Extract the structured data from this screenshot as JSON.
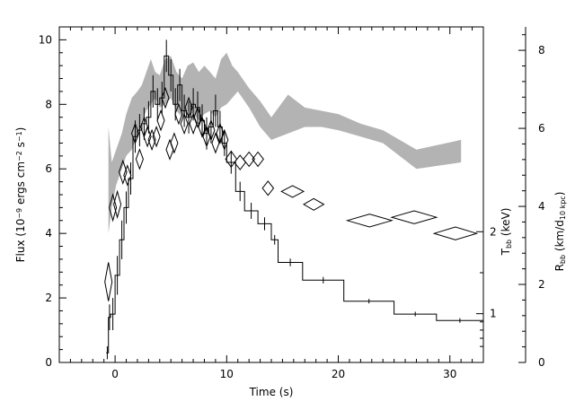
{
  "chart_data": {
    "type": "line",
    "xlabel": "Time (s)",
    "ylabel_left": [
      "Flux (10",
      "−9",
      " ergs cm",
      "−2",
      " s",
      "−1",
      ")"
    ],
    "ylabel_right_inner": [
      "T",
      "bb",
      " (keV)"
    ],
    "ylabel_right_outer": [
      "R",
      "bb",
      " (km/d",
      "10 kpc",
      ")"
    ],
    "xlim": [
      -5,
      33
    ],
    "ylim_flux": [
      0,
      10.4
    ],
    "ylim_rbb": [
      0,
      8.6
    ],
    "x_ticks": [
      "0",
      "10",
      "20",
      "30"
    ],
    "flux_ticks": [
      "0",
      "2",
      "4",
      "6",
      "8",
      "10"
    ],
    "kT_ticks": [
      "1",
      "2"
    ],
    "rbb_ticks": [
      "0",
      "2",
      "4",
      "6",
      "8"
    ],
    "kT_tick_values": [
      1,
      2
    ],
    "grey_band_color": "#b3b3b3",
    "series": [
      {
        "name": "",
        "style": "histogram",
        "points": [
          {
            "x0": -0.8,
            "x1": -0.6,
            "y": 0.3,
            "err": 0.2
          },
          {
            "x0": -0.6,
            "x1": -0.4,
            "y": 1.4,
            "err": 0.4
          },
          {
            "x0": -0.4,
            "x1": 0.0,
            "y": 1.5,
            "err": 0.5
          },
          {
            "x0": 0.0,
            "x1": 0.4,
            "y": 2.7,
            "err": 0.6
          },
          {
            "x0": 0.4,
            "x1": 0.8,
            "y": 3.8,
            "err": 0.6
          },
          {
            "x0": 0.8,
            "x1": 1.2,
            "y": 4.8,
            "err": 0.5
          },
          {
            "x0": 1.2,
            "x1": 1.6,
            "y": 5.7,
            "err": 0.5
          },
          {
            "x0": 1.6,
            "x1": 2.0,
            "y": 7.0,
            "err": 0.5
          },
          {
            "x0": 2.0,
            "x1": 2.4,
            "y": 7.2,
            "err": 0.5
          },
          {
            "x0": 2.4,
            "x1": 2.8,
            "y": 7.4,
            "err": 0.5
          },
          {
            "x0": 2.8,
            "x1": 3.2,
            "y": 7.6,
            "err": 0.5
          },
          {
            "x0": 3.2,
            "x1": 3.6,
            "y": 8.4,
            "err": 0.5
          },
          {
            "x0": 3.6,
            "x1": 4.0,
            "y": 8.0,
            "err": 0.5
          },
          {
            "x0": 4.0,
            "x1": 4.4,
            "y": 8.2,
            "err": 0.5
          },
          {
            "x0": 4.4,
            "x1": 4.8,
            "y": 9.5,
            "err": 0.5
          },
          {
            "x0": 4.8,
            "x1": 5.2,
            "y": 8.9,
            "err": 0.5
          },
          {
            "x0": 5.2,
            "x1": 5.6,
            "y": 8.0,
            "err": 0.5
          },
          {
            "x0": 5.6,
            "x1": 6.0,
            "y": 8.6,
            "err": 0.5
          },
          {
            "x0": 6.0,
            "x1": 6.4,
            "y": 7.8,
            "err": 0.5
          },
          {
            "x0": 6.4,
            "x1": 6.8,
            "y": 7.6,
            "err": 0.5
          },
          {
            "x0": 6.8,
            "x1": 7.2,
            "y": 8.0,
            "err": 0.5
          },
          {
            "x0": 7.2,
            "x1": 7.6,
            "y": 7.9,
            "err": 0.5
          },
          {
            "x0": 7.6,
            "x1": 8.0,
            "y": 7.5,
            "err": 0.5
          },
          {
            "x0": 8.0,
            "x1": 8.4,
            "y": 7.1,
            "err": 0.5
          },
          {
            "x0": 8.4,
            "x1": 8.8,
            "y": 7.3,
            "err": 0.5
          },
          {
            "x0": 8.8,
            "x1": 9.2,
            "y": 7.8,
            "err": 0.5
          },
          {
            "x0": 9.2,
            "x1": 9.6,
            "y": 7.3,
            "err": 0.5
          },
          {
            "x0": 9.6,
            "x1": 10.0,
            "y": 6.8,
            "err": 0.4
          },
          {
            "x0": 10.0,
            "x1": 10.8,
            "y": 6.2,
            "err": 0.35
          },
          {
            "x0": 10.8,
            "x1": 11.6,
            "y": 5.3,
            "err": 0.3
          },
          {
            "x0": 11.6,
            "x1": 12.8,
            "y": 4.7,
            "err": 0.25
          },
          {
            "x0": 12.8,
            "x1": 14.0,
            "y": 4.3,
            "err": 0.2
          },
          {
            "x0": 14.0,
            "x1": 14.6,
            "y": 3.8,
            "err": 0.15
          },
          {
            "x0": 14.6,
            "x1": 16.8,
            "y": 3.1,
            "err": 0.12
          },
          {
            "x0": 16.8,
            "x1": 20.5,
            "y": 2.55,
            "err": 0.1
          },
          {
            "x0": 20.5,
            "x1": 25.0,
            "y": 1.9,
            "err": 0.07
          },
          {
            "x0": 25.0,
            "x1": 28.8,
            "y": 1.5,
            "err": 0.07
          },
          {
            "x0": 28.8,
            "x1": 33.0,
            "y": 1.3,
            "err": 0.07
          }
        ]
      },
      {
        "name": "",
        "style": "band",
        "x": [
          -0.6,
          -0.3,
          0.1,
          0.6,
          1.0,
          1.5,
          2.0,
          2.4,
          2.8,
          3.2,
          3.6,
          4.0,
          4.5,
          5.0,
          5.5,
          6.0,
          6.5,
          7.0,
          7.5,
          8.0,
          8.5,
          9.0,
          9.5,
          10.0,
          10.5,
          11.0,
          12.0,
          13.0,
          14.0,
          15.5,
          17.0,
          18.5,
          20.0,
          22.0,
          24.0,
          27.0,
          31.0
        ],
        "low": [
          4.0,
          4.8,
          5.5,
          6.0,
          6.4,
          6.6,
          7.0,
          7.5,
          7.8,
          8.0,
          8.2,
          7.9,
          8.0,
          8.2,
          7.8,
          7.6,
          7.8,
          7.7,
          7.5,
          7.7,
          7.8,
          7.6,
          7.9,
          8.0,
          8.2,
          8.4,
          7.9,
          7.3,
          6.9,
          7.1,
          7.3,
          7.3,
          7.2,
          7.0,
          6.8,
          6.0,
          6.2
        ],
        "high": [
          7.3,
          6.2,
          6.6,
          7.1,
          7.7,
          8.2,
          8.4,
          8.6,
          9.0,
          9.4,
          9.0,
          8.9,
          9.4,
          9.5,
          9.0,
          8.8,
          9.2,
          9.3,
          9.0,
          9.2,
          9.0,
          8.8,
          9.4,
          9.6,
          9.2,
          9.0,
          8.5,
          8.1,
          7.6,
          8.3,
          7.9,
          7.8,
          7.7,
          7.4,
          7.2,
          6.6,
          6.9
        ]
      },
      {
        "name": "",
        "style": "diamond",
        "points": [
          {
            "x": -0.6,
            "y": 2.5,
            "xerr": 0.2,
            "yerr": 0.6
          },
          {
            "x": -0.2,
            "y": 4.8,
            "xerr": 0.25,
            "yerr": 0.4
          },
          {
            "x": 0.2,
            "y": 4.9,
            "xerr": 0.3,
            "yerr": 0.4
          },
          {
            "x": 0.7,
            "y": 5.9,
            "xerr": 0.35,
            "yerr": 0.35
          },
          {
            "x": 1.1,
            "y": 5.8,
            "xerr": 0.3,
            "yerr": 0.3
          },
          {
            "x": 1.8,
            "y": 7.1,
            "xerr": 0.3,
            "yerr": 0.3
          },
          {
            "x": 2.2,
            "y": 6.3,
            "xerr": 0.3,
            "yerr": 0.3
          },
          {
            "x": 2.6,
            "y": 7.3,
            "xerr": 0.3,
            "yerr": 0.3
          },
          {
            "x": 2.9,
            "y": 7.0,
            "xerr": 0.3,
            "yerr": 0.3
          },
          {
            "x": 3.3,
            "y": 6.9,
            "xerr": 0.3,
            "yerr": 0.3
          },
          {
            "x": 3.7,
            "y": 7.0,
            "xerr": 0.3,
            "yerr": 0.3
          },
          {
            "x": 4.1,
            "y": 7.5,
            "xerr": 0.3,
            "yerr": 0.3
          },
          {
            "x": 4.5,
            "y": 8.2,
            "xerr": 0.3,
            "yerr": 0.3
          },
          {
            "x": 4.9,
            "y": 6.6,
            "xerr": 0.3,
            "yerr": 0.3
          },
          {
            "x": 5.3,
            "y": 6.8,
            "xerr": 0.3,
            "yerr": 0.3
          },
          {
            "x": 5.7,
            "y": 7.7,
            "xerr": 0.3,
            "yerr": 0.3
          },
          {
            "x": 6.2,
            "y": 7.4,
            "xerr": 0.3,
            "yerr": 0.3
          },
          {
            "x": 6.6,
            "y": 7.9,
            "xerr": 0.3,
            "yerr": 0.3
          },
          {
            "x": 7.0,
            "y": 7.4,
            "xerr": 0.3,
            "yerr": 0.3
          },
          {
            "x": 7.4,
            "y": 7.6,
            "xerr": 0.3,
            "yerr": 0.3
          },
          {
            "x": 7.8,
            "y": 7.3,
            "xerr": 0.3,
            "yerr": 0.3
          },
          {
            "x": 8.2,
            "y": 7.0,
            "xerr": 0.3,
            "yerr": 0.3
          },
          {
            "x": 8.6,
            "y": 7.2,
            "xerr": 0.3,
            "yerr": 0.3
          },
          {
            "x": 9.0,
            "y": 6.8,
            "xerr": 0.3,
            "yerr": 0.3
          },
          {
            "x": 9.4,
            "y": 7.1,
            "xerr": 0.3,
            "yerr": 0.3
          },
          {
            "x": 9.8,
            "y": 6.9,
            "xerr": 0.3,
            "yerr": 0.3
          },
          {
            "x": 10.4,
            "y": 6.3,
            "xerr": 0.5,
            "yerr": 0.25
          },
          {
            "x": 11.2,
            "y": 6.2,
            "xerr": 0.5,
            "yerr": 0.22
          },
          {
            "x": 12.0,
            "y": 6.3,
            "xerr": 0.5,
            "yerr": 0.22
          },
          {
            "x": 12.8,
            "y": 6.3,
            "xerr": 0.5,
            "yerr": 0.22
          },
          {
            "x": 13.7,
            "y": 5.4,
            "xerr": 0.5,
            "yerr": 0.22
          },
          {
            "x": 15.9,
            "y": 5.3,
            "xerr": 1.0,
            "yerr": 0.18
          },
          {
            "x": 17.8,
            "y": 4.9,
            "xerr": 0.9,
            "yerr": 0.18
          },
          {
            "x": 22.8,
            "y": 4.4,
            "xerr": 2.0,
            "yerr": 0.2
          },
          {
            "x": 26.8,
            "y": 4.5,
            "xerr": 2.0,
            "yerr": 0.2
          },
          {
            "x": 30.5,
            "y": 4.0,
            "xerr": 1.9,
            "yerr": 0.2
          }
        ]
      }
    ]
  }
}
